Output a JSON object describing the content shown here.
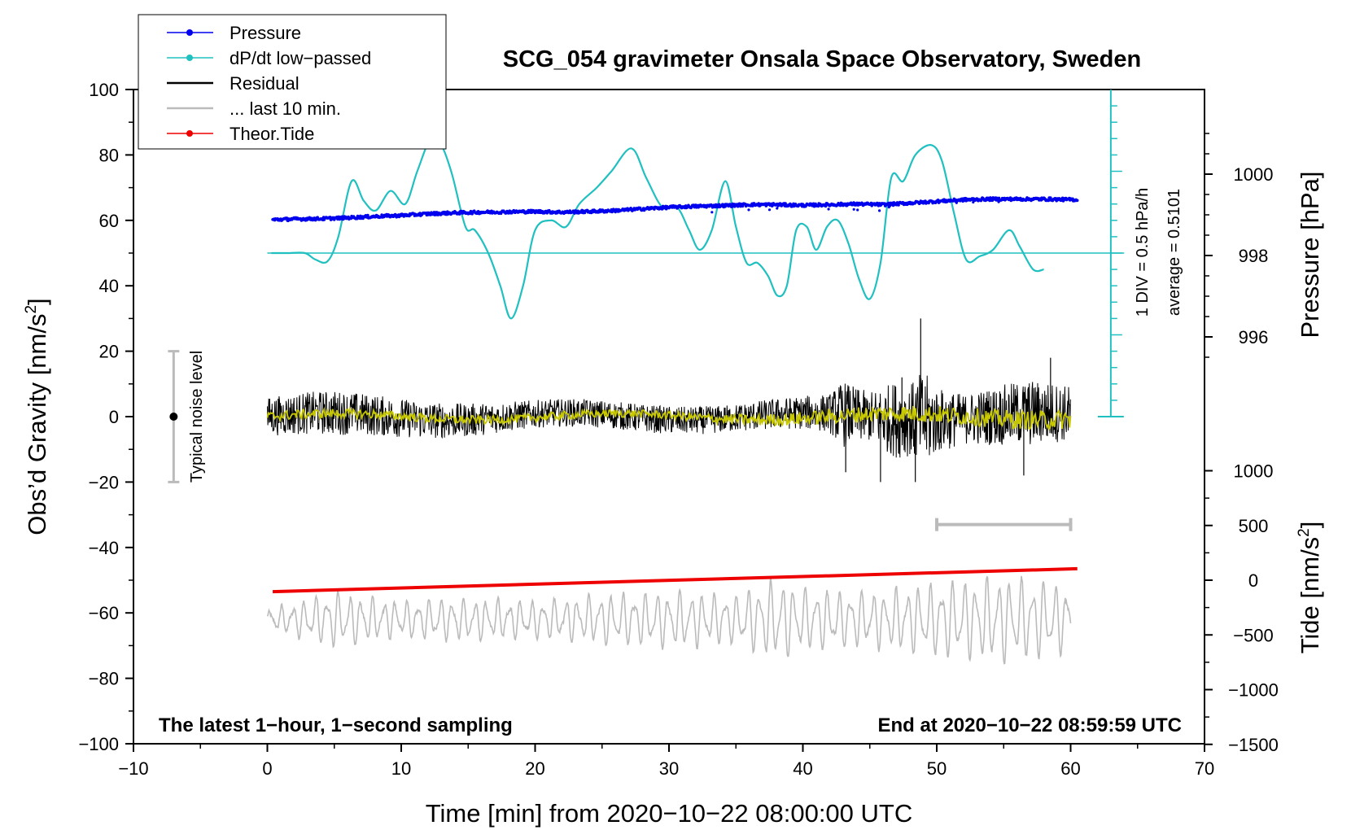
{
  "chart_data": {
    "type": "line",
    "title": "SCG_054 gravimeter Onsala Space Observatory, Sweden",
    "xlabel": "Time [min] from 2020−10−22 08:00:00 UTC",
    "ylabel_left": "Obs’d Gravity [nm/s",
    "ylabel_left_sup": "2",
    "ylabel_left_end": "]",
    "ylabel_right_pressure": "Pressure [hPa]",
    "ylabel_right_tide": "Tide [nm/s",
    "ylabel_right_tide_sup": "2",
    "ylabel_right_tide_end": "]",
    "xlim": [
      -10,
      70
    ],
    "ylim": [
      -100,
      100
    ],
    "x_ticks": [
      -10,
      0,
      10,
      20,
      30,
      40,
      50,
      60,
      70
    ],
    "x_tick_labels": [
      "−10",
      "0",
      "10",
      "20",
      "30",
      "40",
      "50",
      "60",
      "70"
    ],
    "y_ticks": [
      -100,
      -80,
      -60,
      -40,
      -20,
      0,
      20,
      40,
      60,
      80,
      100
    ],
    "y_tick_labels": [
      "−100",
      "−80",
      "−60",
      "−40",
      "−20",
      "0",
      "20",
      "40",
      "60",
      "80",
      "100"
    ],
    "pressure_axis": {
      "ticks": [
        996,
        998,
        1000
      ],
      "tick_labels": [
        "996",
        "998",
        "1000"
      ]
    },
    "tide_axis": {
      "ticks": [
        -1500,
        -1000,
        -500,
        0,
        500,
        1000
      ],
      "tick_labels": [
        "−1500",
        "−1000",
        "−500",
        "0",
        "500",
        "1000"
      ]
    },
    "legend": {
      "placement": "top-left",
      "entries": [
        {
          "label": "Pressure",
          "color": "#0000ee",
          "marker": true
        },
        {
          "label": "dP/dt low−passed",
          "color": "#20c0c0",
          "marker": true
        },
        {
          "label": "Residual",
          "color": "#000000",
          "marker": false
        },
        {
          "label": "... last 10 min.",
          "color": "#bbbbbb",
          "marker": false
        },
        {
          "label": "Theor.Tide",
          "color": "#ee0000",
          "marker": true
        }
      ]
    },
    "annotations": {
      "bottom_left": "The latest 1−hour, 1−second sampling",
      "bottom_right": "End at 2020−10−22 08:59:59 UTC",
      "scale_div": "1 DIV = 0.5 hPa/h",
      "scale_avg": "average = 0.5101",
      "noise_label": "Typical noise level"
    },
    "noise_bar": {
      "x": -7,
      "center": 0,
      "half_range": 20
    },
    "ten_min_marker": {
      "x_start": 50,
      "x_end": 60,
      "y": -33
    },
    "dpdt_baseline": {
      "y": 50,
      "x_start": 0,
      "x_end": 64
    },
    "scale_bar": {
      "x": 63,
      "y_top": 100,
      "y_bottom": 0,
      "minor_step": 5
    },
    "series": [
      {
        "name": "Pressure",
        "color": "#0000ee",
        "kind": "dots",
        "x": [
          0.4,
          2,
          4,
          6,
          8,
          10,
          12,
          14,
          16,
          18,
          20,
          22,
          24,
          26,
          28,
          30,
          32,
          34,
          36,
          38,
          40,
          42,
          44,
          46,
          48,
          50,
          52,
          54,
          56,
          58,
          60.5
        ],
        "y": [
          60.2,
          60.4,
          60.5,
          60.8,
          61.2,
          61.5,
          62,
          62.3,
          62.5,
          62.6,
          62.7,
          62.5,
          62.7,
          63,
          63.5,
          64,
          64.3,
          64.5,
          64.8,
          64.8,
          64.6,
          64.8,
          65,
          64.8,
          65.3,
          65.8,
          66.3,
          66.5,
          66.5,
          66.5,
          66.3
        ]
      },
      {
        "name": "dP/dt low−passed",
        "color": "#20c0c0",
        "kind": "line",
        "x": [
          0.3,
          1.5,
          2.8,
          3.6,
          4.5,
          5.3,
          6.3,
          7.2,
          8.1,
          9.2,
          10.3,
          11.2,
          12.2,
          13,
          13.8,
          14.8,
          15.5,
          16.5,
          17.4,
          18.2,
          19.1,
          20,
          21.2,
          22.3,
          23.3,
          24.6,
          25.7,
          27.2,
          28.3,
          29.5,
          30.6,
          31.5,
          32.3,
          33.2,
          34.2,
          35,
          35.8,
          36.6,
          37.4,
          38.1,
          38.8,
          39.5,
          40.3,
          41,
          41.8,
          42.6,
          43.4,
          44.2,
          45,
          45.8,
          46.6,
          47.5,
          48.4,
          49.6,
          50.4,
          51.3,
          52.2,
          53.2,
          54.2,
          55.4,
          56.2,
          57.2,
          58
        ],
        "y": [
          50,
          50,
          50,
          48,
          47.5,
          55,
          72,
          66,
          63,
          69,
          65,
          75,
          85,
          83,
          74,
          58,
          57,
          50,
          40,
          30,
          40,
          57,
          60,
          58,
          65,
          70,
          75,
          82,
          73,
          64,
          64,
          57,
          51,
          57,
          72,
          58,
          47,
          47,
          43,
          37,
          40,
          57,
          58,
          51,
          58,
          60,
          53,
          42,
          36,
          47,
          73,
          72,
          80,
          83,
          78,
          62,
          48,
          49,
          51,
          57,
          52,
          45,
          45
        ]
      },
      {
        "name": "Residual",
        "color": "#000000",
        "kind": "noise",
        "x_start": 0,
        "x_end": 60,
        "envelope_x": [
          0,
          5,
          10,
          15,
          20,
          25,
          30,
          35,
          40,
          42,
          43,
          44,
          45,
          47,
          48,
          49,
          50,
          52,
          55,
          57,
          60
        ],
        "envelope_y": [
          7,
          8,
          7,
          6,
          5,
          5,
          5,
          5,
          6,
          7,
          12,
          10,
          9,
          14,
          13,
          18,
          12,
          9,
          11,
          12,
          10
        ],
        "spikes_x": [
          43.2,
          45.8,
          47.4,
          48.4,
          48.8,
          56.5,
          58.5
        ],
        "spikes_y": [
          -17,
          -20,
          12,
          -20,
          30,
          -18,
          18
        ]
      },
      {
        "name": "Residual (smoothed)",
        "color": "#c8c800",
        "kind": "noise",
        "x_start": 0,
        "x_end": 60,
        "envelope_x": [
          0,
          30,
          45,
          60
        ],
        "envelope_y": [
          1.5,
          1.2,
          2.5,
          3
        ],
        "spikes_x": [],
        "spikes_y": []
      },
      {
        "name": "... last 10 min.",
        "color": "#bbbbbb",
        "kind": "oscillation",
        "x_start": 0,
        "x_end": 60,
        "center": -62,
        "amplitude_x": [
          0,
          5,
          10,
          15,
          20,
          25,
          30,
          35,
          38,
          40,
          45,
          50,
          55,
          60
        ],
        "amplitude_y": [
          3,
          9,
          6,
          7,
          6,
          8,
          9,
          8,
          13,
          10,
          9,
          12,
          14,
          11
        ],
        "cycle_min": 0.85
      },
      {
        "name": "Theor.Tide",
        "color": "#ee0000",
        "kind": "line",
        "x": [
          0.4,
          60.5
        ],
        "y": [
          -53.5,
          -46.5
        ]
      }
    ]
  }
}
